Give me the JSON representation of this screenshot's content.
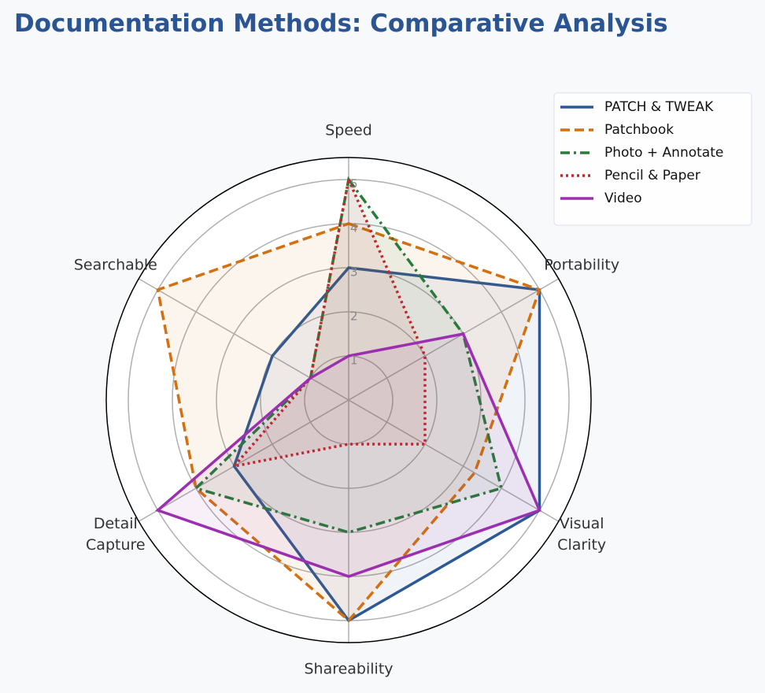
{
  "chart_data": {
    "type": "radar",
    "title": "Documentation Methods: Comparative Analysis",
    "categories": [
      "Speed",
      "Portability",
      "Visual\nClarity",
      "Shareability",
      "Detail\nCapture",
      "Searchable"
    ],
    "ylim": [
      0,
      5.5
    ],
    "yticks": [
      1,
      2,
      3,
      4,
      5
    ],
    "grid": true,
    "legend": "upper right",
    "series": [
      {
        "name": "PATCH & TWEAK",
        "color": "#2c5996",
        "linestyle": "solid",
        "values": [
          3,
          5,
          5,
          5,
          3,
          2
        ]
      },
      {
        "name": "Patchbook",
        "color": "#d4700f",
        "linestyle": "dashed",
        "values": [
          4,
          5,
          3.3,
          5,
          4,
          5
        ]
      },
      {
        "name": "Photo + Annotate",
        "color": "#2a7a3a",
        "linestyle": "dashdot",
        "values": [
          5,
          3,
          4,
          3,
          4,
          1
        ]
      },
      {
        "name": "Pencil & Paper",
        "color": "#c0282a",
        "linestyle": "dotted",
        "values": [
          5,
          2,
          2,
          1,
          3,
          1
        ]
      },
      {
        "name": "Video",
        "color": "#9b2fb0",
        "linestyle": "solid",
        "values": [
          1,
          3,
          5,
          4,
          5,
          1
        ]
      }
    ]
  }
}
